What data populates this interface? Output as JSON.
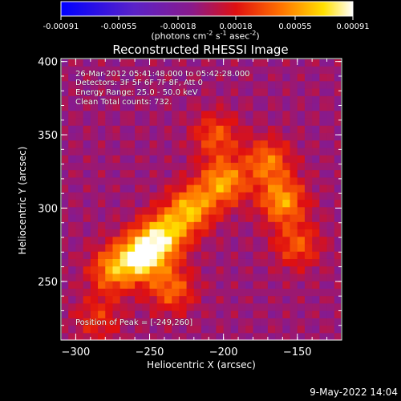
{
  "chart_data": {
    "type": "heatmap",
    "title": "Reconstructed RHESSI Image",
    "xlabel": "Heliocentric X (arcsec)",
    "ylabel": "Heliocentric Y (arcsec)",
    "xlim": [
      -310,
      -120
    ],
    "ylim": [
      210,
      402
    ],
    "xticks": [
      -300,
      -250,
      -200,
      -150
    ],
    "yticks": [
      250,
      300,
      350,
      400
    ],
    "colormap": "Rainbow + white (blue-purple-red-orange-yellow-white)",
    "colorbar": {
      "range": [
        -0.00091,
        0.00091
      ],
      "ticks": [
        "-0.00091",
        "-0.00055",
        "-0.00018",
        "0.00018",
        "0.00055",
        "0.00091"
      ],
      "unit_prefix": "(photons cm",
      "unit_exp1": "-2",
      "unit_mid": " s",
      "unit_exp2": "-1",
      "unit_mid2": " asec",
      "unit_exp3": "-2",
      "unit_suffix": ")"
    },
    "annotations": {
      "time": "26-Mar-2012 05:41:48.000 to 05:42:28.000",
      "detectors": "Detectors: 3F 5F 6F 7F 8F, Att 0",
      "energy": "Energy Range: 25.0 - 50.0 keV",
      "clean": "Clean     Total counts: 732.",
      "peak": "Position of Peak = [-249,260]"
    },
    "peak": [
      -249,
      260
    ],
    "bright_regions": [
      {
        "x": -255,
        "y": 268,
        "value": 0.00091
      },
      {
        "x": -240,
        "y": 282,
        "value": 0.0007
      },
      {
        "x": -222,
        "y": 300,
        "value": 0.00065
      },
      {
        "x": -200,
        "y": 318,
        "value": 0.00062
      },
      {
        "x": -160,
        "y": 305,
        "value": 0.0006
      },
      {
        "x": -170,
        "y": 332,
        "value": 0.0005
      },
      {
        "x": -275,
        "y": 258,
        "value": 0.00055
      },
      {
        "x": -235,
        "y": 245,
        "value": 0.00045
      },
      {
        "x": -150,
        "y": 275,
        "value": 0.0004
      },
      {
        "x": -205,
        "y": 350,
        "value": 0.0004
      },
      {
        "x": -285,
        "y": 225,
        "value": 0.0003
      }
    ]
  },
  "timestamp": "9-May-2022 14:04"
}
